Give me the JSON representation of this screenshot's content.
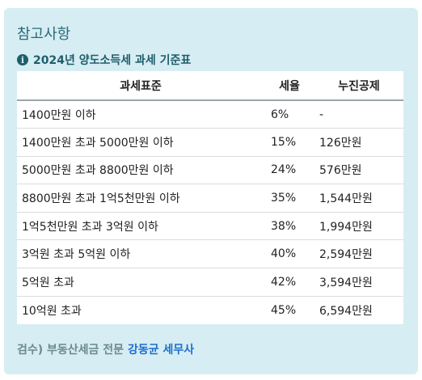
{
  "card": {
    "title": "참고사항",
    "subtitle": "2024년 양도소득세 과세 기준표",
    "info_icon": "info-circle-icon"
  },
  "table": {
    "headers": [
      "과세표준",
      "세율",
      "누진공제"
    ],
    "rows": [
      {
        "bracket": "1400만원 이하",
        "rate": "6%",
        "deduction": "-"
      },
      {
        "bracket": "1400만원 초과 5000만원 이하",
        "rate": "15%",
        "deduction": "126만원"
      },
      {
        "bracket": "5000만원 초과 8800만원 이하",
        "rate": "24%",
        "deduction": "576만원"
      },
      {
        "bracket": "8800만원 초과 1억5천만원 이하",
        "rate": "35%",
        "deduction": "1,544만원"
      },
      {
        "bracket": "1억5천만원 초과 3억원 이하",
        "rate": "38%",
        "deduction": "1,994만원"
      },
      {
        "bracket": "3억원 초과 5억원 이하",
        "rate": "40%",
        "deduction": "2,594만원"
      },
      {
        "bracket": "5억원 초과",
        "rate": "42%",
        "deduction": "3,594만원"
      },
      {
        "bracket": "10억원 초과",
        "rate": "45%",
        "deduction": "6,594만원"
      }
    ]
  },
  "footer": {
    "prefix": "검수) 부동산세금 전문",
    "brand": "강동균 세무사"
  },
  "colors": {
    "card_bg": "#d6edf3",
    "title": "#2a6a78",
    "brand_link": "#1b6fd0"
  }
}
